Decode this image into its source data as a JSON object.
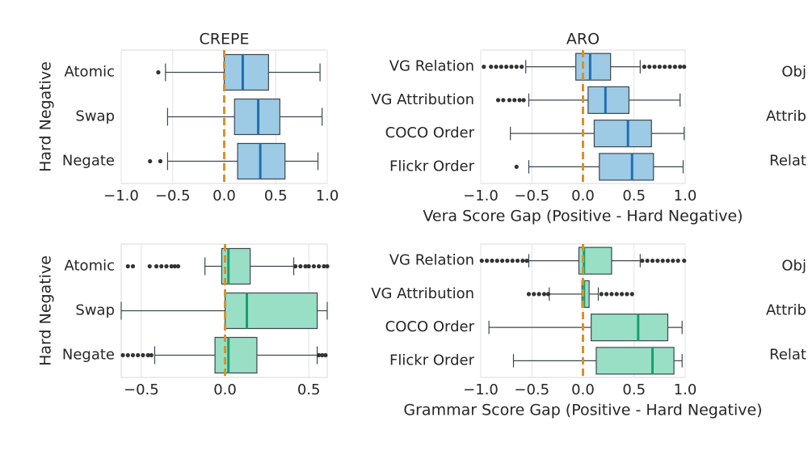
{
  "chart_data": [
    {
      "type": "box",
      "title": "CREPE",
      "ylabel": "Hard Negative",
      "color": "#9dcae4",
      "median_color": "#1f6fb2",
      "vline": 0,
      "xlim": [
        -1,
        1
      ],
      "xticks": [
        {
          "value": -1,
          "label": "−1.0"
        },
        {
          "value": -0.5,
          "label": "−0.5"
        },
        {
          "value": 0,
          "label": "0.0"
        },
        0.5,
        {
          "value": 1,
          "label": "1.0"
        }
      ],
      "categories": [
        "Atomic",
        "Swap",
        "Negate"
      ],
      "boxes": [
        {
          "min": -0.57,
          "q1": 0.0,
          "median": 0.18,
          "q3": 0.43,
          "max": 0.93,
          "outliers": [
            -0.64
          ]
        },
        {
          "min": -0.55,
          "q1": 0.1,
          "median": 0.33,
          "q3": 0.54,
          "max": 0.95,
          "outliers": []
        },
        {
          "min": -0.55,
          "q1": 0.13,
          "median": 0.35,
          "q3": 0.59,
          "max": 0.91,
          "outliers": [
            -0.72,
            -0.62
          ]
        }
      ]
    },
    {
      "type": "box",
      "title": "ARO",
      "xlabel": "Vera Score Gap (Positive - Hard Negative)",
      "color": "#9dcae4",
      "median_color": "#1f6fb2",
      "vline": 0,
      "xlim": [
        -1,
        1
      ],
      "xticks": [
        {
          "value": -1,
          "label": "−1.0"
        },
        {
          "value": -0.5,
          "label": "−0.5"
        },
        {
          "value": 0,
          "label": "0.0"
        },
        0.5,
        {
          "value": 1,
          "label": "1.0"
        }
      ],
      "categories": [
        "VG Relation",
        "VG Attribution",
        "COCO Order",
        "Flickr Order"
      ],
      "boxes": [
        {
          "min": -0.56,
          "q1": -0.07,
          "median": 0.07,
          "q3": 0.27,
          "max": 0.56,
          "outliers": [
            -0.97,
            -0.9,
            -0.85,
            -0.8,
            -0.75,
            -0.7,
            -0.65,
            -0.6,
            0.6,
            0.65,
            0.7,
            0.75,
            0.8,
            0.85,
            0.9,
            0.95,
            0.99
          ]
        },
        {
          "min": -0.53,
          "q1": 0.05,
          "median": 0.22,
          "q3": 0.45,
          "max": 0.95,
          "outliers": [
            -0.83,
            -0.78,
            -0.72,
            -0.67,
            -0.62,
            -0.58
          ]
        },
        {
          "min": -0.71,
          "q1": 0.11,
          "median": 0.44,
          "q3": 0.67,
          "max": 0.99,
          "outliers": []
        },
        {
          "min": -0.53,
          "q1": 0.16,
          "median": 0.48,
          "q3": 0.69,
          "max": 0.98,
          "outliers": [
            -0.65
          ]
        }
      ]
    },
    {
      "type": "labels",
      "categories": [
        "Obj",
        "Attrib",
        "Relat"
      ]
    },
    {
      "type": "box",
      "ylabel": "Hard Negative",
      "color": "#98dfc5",
      "median_color": "#17a06f",
      "vline": 0,
      "xlim": [
        -0.62,
        0.61
      ],
      "xticks": [
        {
          "value": -0.5,
          "label": "−0.5"
        },
        {
          "value": 0,
          "label": "0.0"
        },
        0.5
      ],
      "categories": [
        "Atomic",
        "Swap",
        "Negate"
      ],
      "boxes": [
        {
          "min": -0.12,
          "q1": -0.02,
          "median": 0.02,
          "q3": 0.15,
          "max": 0.41,
          "outliers": [
            -0.58,
            -0.55,
            -0.45,
            -0.41,
            -0.38,
            -0.35,
            -0.32,
            -0.3,
            -0.28,
            0.42,
            0.45,
            0.48,
            0.5,
            0.53,
            0.56,
            0.59,
            0.61
          ]
        },
        {
          "min": -0.62,
          "q1": 0.0,
          "median": 0.13,
          "q3": 0.55,
          "max": 0.61,
          "outliers": []
        },
        {
          "min": -0.42,
          "q1": -0.06,
          "median": 0.02,
          "q3": 0.19,
          "max": 0.55,
          "outliers": [
            -0.61,
            -0.58,
            -0.55,
            -0.52,
            -0.49,
            -0.46,
            -0.44,
            0.56,
            0.58,
            0.6
          ]
        }
      ]
    },
    {
      "type": "box",
      "xlabel": "Grammar Score Gap (Positive - Hard Negative)",
      "color": "#98dfc5",
      "median_color": "#17a06f",
      "vline": 0,
      "xlim": [
        -1,
        1
      ],
      "xticks": [
        {
          "value": -1,
          "label": "−1.0"
        },
        {
          "value": -0.5,
          "label": "−0.5"
        },
        {
          "value": 0,
          "label": "0.0"
        },
        0.5,
        {
          "value": 1,
          "label": "1.0"
        }
      ],
      "categories": [
        "VG Relation",
        "VG Attribution",
        "COCO Order",
        "Flickr Order"
      ],
      "boxes": [
        {
          "min": -0.53,
          "q1": -0.04,
          "median": 0.01,
          "q3": 0.28,
          "max": 0.56,
          "outliers": [
            -0.99,
            -0.94,
            -0.89,
            -0.84,
            -0.79,
            -0.74,
            -0.69,
            -0.64,
            -0.59,
            -0.55,
            0.58,
            0.63,
            0.68,
            0.73,
            0.78,
            0.83,
            0.88,
            0.93,
            0.99
          ]
        },
        {
          "min": -0.33,
          "q1": -0.01,
          "median": 0.01,
          "q3": 0.06,
          "max": 0.15,
          "outliers": [
            -0.53,
            -0.48,
            -0.43,
            -0.38,
            -0.34,
            0.18,
            0.23,
            0.28,
            0.33,
            0.38,
            0.43,
            0.48
          ]
        },
        {
          "min": -0.92,
          "q1": 0.08,
          "median": 0.54,
          "q3": 0.83,
          "max": 0.97,
          "outliers": []
        },
        {
          "min": -0.68,
          "q1": 0.13,
          "median": 0.68,
          "q3": 0.89,
          "max": 0.97,
          "outliers": []
        }
      ]
    },
    {
      "type": "labels",
      "categories": [
        "Obj",
        "Attrib",
        "Relat"
      ]
    }
  ]
}
